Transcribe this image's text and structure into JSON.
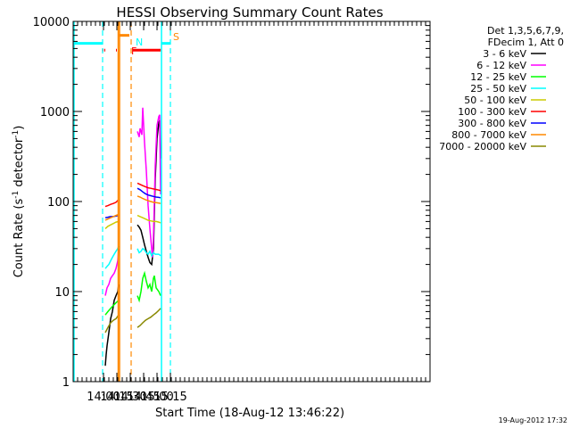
{
  "chart_data": {
    "type": "line",
    "title": "HESSI Observing Summary Count Rates",
    "xlabel": "Start Time (18-Aug-12 13:46:22)",
    "ylabel_main": "Count Rate (s",
    "ylabel_sup1": "-1",
    "ylabel_mid": " detector",
    "ylabel_sup2": "-1",
    "ylabel_end": ")",
    "yscale": "log",
    "xlim_min": [
      826,
      1226
    ],
    "ylim": [
      1,
      10000
    ],
    "x_ticks": [
      {
        "label": "14:00",
        "min": 860
      },
      {
        "label": "14:15",
        "min": 875
      },
      {
        "label": "14:30",
        "min": 890
      },
      {
        "label": "14:45",
        "min": 905
      },
      {
        "label": "15:00",
        "min": 920
      },
      {
        "label": "15:15",
        "min": 935
      }
    ],
    "y_ticks": [
      {
        "label": "1",
        "v": 1
      },
      {
        "label": "10",
        "v": 10
      },
      {
        "label": "100",
        "v": 100
      },
      {
        "label": "1000",
        "v": 1000
      },
      {
        "label": "10000",
        "v": 10000
      }
    ],
    "legend_header": [
      "Det 1,3,5,6,7,9,",
      "FDecim 1, Att 0"
    ],
    "legend": [
      {
        "name": "3 - 6 keV",
        "color": "#000000"
      },
      {
        "name": "6 - 12 keV",
        "color": "#ff00ff"
      },
      {
        "name": "12 - 25 keV",
        "color": "#00ff00"
      },
      {
        "name": "25 - 50 keV",
        "color": "#00ffff"
      },
      {
        "name": "50 - 100 keV",
        "color": "#cccc00"
      },
      {
        "name": "100 - 300 keV",
        "color": "#ff0000"
      },
      {
        "name": "300 - 800 keV",
        "color": "#0000ff"
      },
      {
        "name": "800 - 7000 keV",
        "color": "#ff8800"
      },
      {
        "name": "7000 - 20000 keV",
        "color": "#888800"
      }
    ],
    "flags": [
      {
        "label": "F",
        "color": "#ff0000"
      },
      {
        "label": "N",
        "color": "#00ffff"
      },
      {
        "label": "S",
        "color": "#ff8800"
      }
    ],
    "series": [
      {
        "band": "3 - 6 keV",
        "color": "#000000",
        "segments": [
          [
            [
              862,
              1.5
            ],
            [
              863,
              2
            ],
            [
              864,
              2.5
            ],
            [
              866,
              3.5
            ],
            [
              868,
              5
            ],
            [
              870,
              6
            ],
            [
              872,
              8
            ],
            [
              874,
              9
            ],
            [
              876,
              10
            ],
            [
              877,
              12
            ]
          ],
          [
            [
              898,
              55
            ],
            [
              900,
              52
            ],
            [
              902,
              48
            ],
            [
              904,
              40
            ],
            [
              906,
              33
            ],
            [
              908,
              28
            ],
            [
              910,
              24
            ],
            [
              912,
              21
            ],
            [
              914,
              20
            ],
            [
              916,
              30
            ],
            [
              918,
              180
            ],
            [
              920,
              500
            ],
            [
              922,
              750
            ],
            [
              923,
              800
            ],
            [
              924,
              300
            ]
          ]
        ]
      },
      {
        "band": "6 - 12 keV",
        "color": "#ff00ff",
        "segments": [
          [
            [
              862,
              9
            ],
            [
              864,
              11
            ],
            [
              866,
              12
            ],
            [
              868,
              14
            ],
            [
              870,
              15
            ],
            [
              872,
              16
            ],
            [
              874,
              18
            ],
            [
              876,
              22
            ],
            [
              877,
              30
            ]
          ],
          [
            [
              898,
              600
            ],
            [
              900,
              520
            ],
            [
              901,
              650
            ],
            [
              903,
              550
            ],
            [
              904,
              1100
            ],
            [
              906,
              450
            ],
            [
              908,
              220
            ],
            [
              910,
              90
            ],
            [
              912,
              50
            ],
            [
              914,
              30
            ],
            [
              915,
              24
            ],
            [
              916,
              40
            ],
            [
              918,
              250
            ],
            [
              920,
              700
            ],
            [
              922,
              880
            ],
            [
              923,
              920
            ],
            [
              924,
              120
            ]
          ]
        ]
      },
      {
        "band": "12 - 25 keV",
        "color": "#00ff00",
        "segments": [
          [
            [
              862,
              5.5
            ],
            [
              865,
              6
            ],
            [
              868,
              6.5
            ],
            [
              871,
              7
            ],
            [
              874,
              7.5
            ],
            [
              877,
              8
            ]
          ],
          [
            [
              898,
              9
            ],
            [
              900,
              8
            ],
            [
              902,
              10
            ],
            [
              904,
              14
            ],
            [
              906,
              16
            ],
            [
              908,
              13
            ],
            [
              910,
              11
            ],
            [
              912,
              12
            ],
            [
              914,
              10
            ],
            [
              916,
              14
            ],
            [
              917,
              15
            ],
            [
              919,
              11
            ],
            [
              922,
              10
            ],
            [
              924,
              9
            ]
          ]
        ]
      },
      {
        "band": "25 - 50 keV",
        "color": "#00ffff",
        "segments": [
          [
            [
              862,
              18
            ],
            [
              864,
              19
            ],
            [
              866,
              20
            ],
            [
              868,
              22
            ],
            [
              870,
              24
            ],
            [
              872,
              26
            ],
            [
              874,
              28
            ],
            [
              876,
              30
            ],
            [
              877,
              32
            ]
          ],
          [
            [
              898,
              30
            ],
            [
              900,
              27
            ],
            [
              902,
              28
            ],
            [
              904,
              30
            ],
            [
              906,
              29
            ],
            [
              908,
              27
            ],
            [
              910,
              26
            ],
            [
              912,
              28
            ],
            [
              914,
              25
            ],
            [
              916,
              27
            ],
            [
              918,
              26
            ],
            [
              920,
              26
            ],
            [
              922,
              26
            ],
            [
              924,
              25
            ]
          ]
        ]
      },
      {
        "band": "50 - 100 keV",
        "color": "#cccc00",
        "segments": [
          [
            [
              862,
              50
            ],
            [
              865,
              53
            ],
            [
              868,
              55
            ],
            [
              871,
              57
            ],
            [
              874,
              59
            ],
            [
              877,
              60
            ]
          ],
          [
            [
              898,
              70
            ],
            [
              901,
              68
            ],
            [
              904,
              66
            ],
            [
              907,
              64
            ],
            [
              910,
              62
            ],
            [
              913,
              61
            ],
            [
              916,
              60
            ],
            [
              919,
              60
            ],
            [
              922,
              59
            ],
            [
              924,
              58
            ]
          ]
        ]
      },
      {
        "band": "100 - 300 keV",
        "color": "#ff0000",
        "segments": [
          [
            [
              862,
              88
            ],
            [
              865,
              90
            ],
            [
              868,
              93
            ],
            [
              871,
              95
            ],
            [
              874,
              98
            ],
            [
              877,
              105
            ]
          ],
          [
            [
              898,
              160
            ],
            [
              901,
              155
            ],
            [
              904,
              150
            ],
            [
              907,
              146
            ],
            [
              910,
              142
            ],
            [
              913,
              140
            ],
            [
              916,
              138
            ],
            [
              919,
              136
            ],
            [
              922,
              134
            ],
            [
              924,
              132
            ]
          ]
        ]
      },
      {
        "band": "300 - 800 keV",
        "color": "#0000ff",
        "segments": [
          [
            [
              862,
              66
            ],
            [
              865,
              67
            ],
            [
              868,
              68
            ],
            [
              871,
              68
            ],
            [
              874,
              69
            ],
            [
              877,
              70
            ]
          ],
          [
            [
              898,
              140
            ],
            [
              901,
              135
            ],
            [
              904,
              128
            ],
            [
              907,
              122
            ],
            [
              910,
              118
            ],
            [
              913,
              116
            ],
            [
              916,
              114
            ],
            [
              919,
              112
            ],
            [
              922,
              111
            ],
            [
              924,
              110
            ]
          ]
        ]
      },
      {
        "band": "800 - 7000 keV",
        "color": "#ff8800",
        "segments": [
          [
            [
              862,
              62
            ],
            [
              865,
              64
            ],
            [
              868,
              66
            ],
            [
              871,
              68
            ],
            [
              874,
              70
            ],
            [
              877,
              72
            ]
          ],
          [
            [
              898,
              115
            ],
            [
              901,
              112
            ],
            [
              904,
              108
            ],
            [
              907,
              105
            ],
            [
              910,
              102
            ],
            [
              913,
              100
            ],
            [
              916,
              98
            ],
            [
              919,
              97
            ],
            [
              922,
              96
            ],
            [
              924,
              95
            ]
          ]
        ]
      },
      {
        "band": "7000 - 20000 keV",
        "color": "#888800",
        "segments": [
          [
            [
              862,
              3.5
            ],
            [
              865,
              4
            ],
            [
              868,
              4.5
            ],
            [
              871,
              4.8
            ],
            [
              874,
              5
            ],
            [
              877,
              5.5
            ]
          ],
          [
            [
              898,
              4
            ],
            [
              901,
              4.2
            ],
            [
              904,
              4.5
            ],
            [
              907,
              4.8
            ],
            [
              910,
              5
            ],
            [
              913,
              5.2
            ],
            [
              916,
              5.5
            ],
            [
              919,
              5.8
            ],
            [
              922,
              6.2
            ],
            [
              924,
              6.5
            ]
          ]
        ]
      }
    ],
    "flag_lines": [
      {
        "color": "#ff0000",
        "y": 4800,
        "spans": [
          [
            859,
            860
          ],
          [
            861,
            862
          ],
          [
            874,
            875
          ],
          [
            893,
            924
          ]
        ]
      },
      {
        "color": "#ff8800",
        "y": 7000,
        "spans": [
          [
            877,
            889
          ]
        ]
      },
      {
        "color": "#00ffff",
        "y": 5700,
        "spans": [
          [
            827,
            859
          ],
          [
            925,
            935
          ]
        ]
      }
    ],
    "vlines_solid": [
      {
        "color": "#00ffff",
        "x": 827
      },
      {
        "color": "#ff8800",
        "x": 876.5
      },
      {
        "color": "#ff8800",
        "x": 878
      },
      {
        "color": "#00ffff",
        "x": 925
      }
    ],
    "vlines_dashed": [
      {
        "color": "#00ffff",
        "x": 859
      },
      {
        "color": "#ff8800",
        "x": 891
      },
      {
        "color": "#00ffff",
        "x": 935
      }
    ]
  },
  "footer": {
    "timestamp": "19-Aug-2012 17:32"
  }
}
